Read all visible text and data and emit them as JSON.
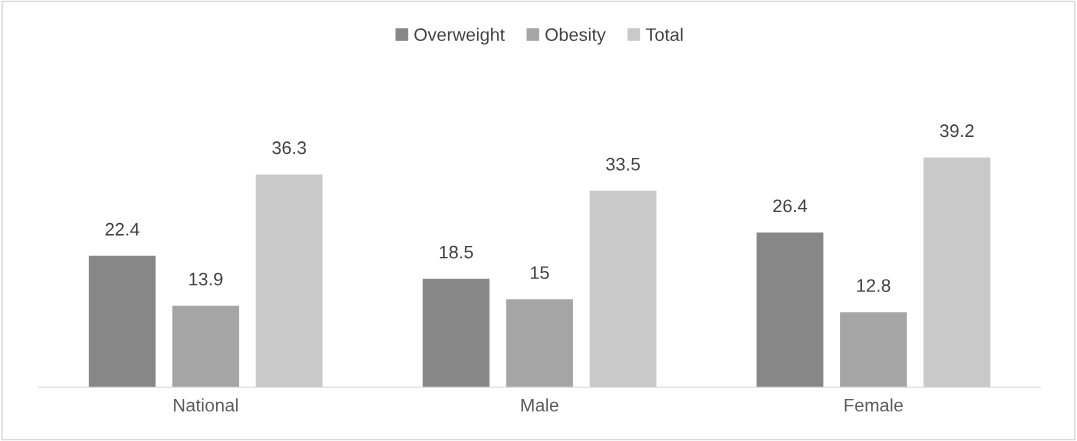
{
  "chart_data": {
    "type": "bar",
    "categories": [
      "National",
      "Male",
      "Female"
    ],
    "series": [
      {
        "name": "Overweight",
        "color": "#878787",
        "values": [
          22.4,
          18.5,
          26.4
        ]
      },
      {
        "name": "Obesity",
        "color": "#a5a5a5",
        "values": [
          13.9,
          15,
          12.8
        ]
      },
      {
        "name": "Total",
        "color": "#c9c9c9",
        "values": [
          36.3,
          33.5,
          39.2
        ]
      }
    ],
    "data_labels": true,
    "legend": "top"
  }
}
